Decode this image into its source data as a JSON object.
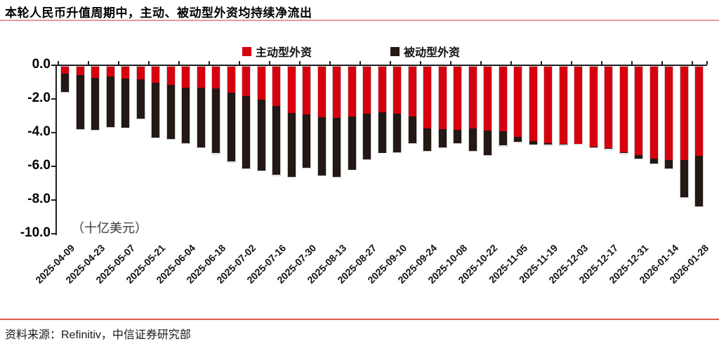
{
  "header": {
    "title": "本轮人民币升值周期中，主动、被动型外资均持续净流出"
  },
  "legend": {
    "items": [
      {
        "label": "主动型外资",
        "color": "#d7000f"
      },
      {
        "label": "被动型外资",
        "color": "#231815"
      }
    ]
  },
  "chart_data": {
    "type": "bar",
    "stacked": true,
    "title": "本轮人民币升值周期中，主动、被动型外资均持续净流出",
    "unit_label": "（十亿美元）",
    "ylabel": "十亿美元",
    "ylim": [
      -10,
      0
    ],
    "yticks": [
      {
        "value": 0,
        "label": "0.0"
      },
      {
        "value": -2,
        "label": "-2.0"
      },
      {
        "value": -4,
        "label": "-4.0"
      },
      {
        "value": -6,
        "label": "-6.0"
      },
      {
        "value": -8,
        "label": "-8.0"
      },
      {
        "value": -10,
        "label": "-10.0"
      }
    ],
    "categories": [
      "2025-04-09",
      "2025-04-16",
      "2025-04-23",
      "2025-04-30",
      "2025-05-07",
      "2025-05-14",
      "2025-05-21",
      "2025-05-28",
      "2025-06-04",
      "2025-06-11",
      "2025-06-18",
      "2025-06-25",
      "2025-07-02",
      "2025-07-09",
      "2025-07-16",
      "2025-07-23",
      "2025-07-30",
      "2025-08-06",
      "2025-08-13",
      "2025-08-20",
      "2025-08-27",
      "2025-09-03",
      "2025-09-10",
      "2025-09-17",
      "2025-09-24",
      "2025-10-01",
      "2025-10-08",
      "2025-10-15",
      "2025-10-22",
      "2025-10-29",
      "2025-11-05",
      "2025-11-12",
      "2025-11-19",
      "2025-11-26",
      "2025-12-03",
      "2025-12-10",
      "2025-12-17",
      "2025-12-24",
      "2025-12-31",
      "2026-01-07",
      "2026-01-14",
      "2026-01-21",
      "2026-01-28"
    ],
    "xtick_labels": [
      "2025-04-09",
      "2025-04-23",
      "2025-05-07",
      "2025-05-21",
      "2025-06-04",
      "2025-06-18",
      "2025-07-02",
      "2025-07-16",
      "2025-07-30",
      "2025-08-13",
      "2025-08-27",
      "2025-09-10",
      "2025-09-24",
      "2025-10-08",
      "2025-10-22",
      "2025-11-05",
      "2025-11-19",
      "2025-12-03",
      "2025-12-17",
      "2025-12-31",
      "2026-01-14",
      "2026-01-28"
    ],
    "xtick_every": 2,
    "series": [
      {
        "name": "主动型外资",
        "color": "#d7000f",
        "values": [
          -0.4,
          -0.5,
          -0.65,
          -0.6,
          -0.7,
          -0.75,
          -0.95,
          -1.1,
          -1.25,
          -1.25,
          -1.3,
          -1.55,
          -1.75,
          -1.95,
          -2.35,
          -2.75,
          -2.85,
          -3.0,
          -3.05,
          -2.95,
          -2.8,
          -2.7,
          -2.8,
          -2.95,
          -3.65,
          -3.7,
          -3.75,
          -3.65,
          -3.8,
          -3.85,
          -4.15,
          -4.4,
          -4.55,
          -4.6,
          -4.6,
          -4.75,
          -4.85,
          -5.1,
          -5.25,
          -5.45,
          -5.55,
          -5.55,
          -5.3
        ]
      },
      {
        "name": "被动型外资",
        "color": "#231815",
        "values": [
          -1.1,
          -3.2,
          -3.1,
          -3.0,
          -2.9,
          -2.35,
          -3.25,
          -3.2,
          -3.3,
          -3.55,
          -3.85,
          -4.1,
          -4.3,
          -4.2,
          -4.1,
          -3.8,
          -3.15,
          -3.45,
          -3.5,
          -3.15,
          -2.7,
          -2.4,
          -2.3,
          -1.6,
          -1.35,
          -1.1,
          -0.8,
          -1.35,
          -1.45,
          -0.85,
          -0.3,
          -0.2,
          -0.1,
          -0.05,
          0,
          -0.05,
          -0.05,
          -0.05,
          -0.2,
          -0.3,
          -0.5,
          -2.2,
          -3.0
        ]
      }
    ],
    "legend_position": "top",
    "grid": false
  },
  "footer": {
    "source": "资料来源：Refinitiv，中信证券研究部"
  }
}
